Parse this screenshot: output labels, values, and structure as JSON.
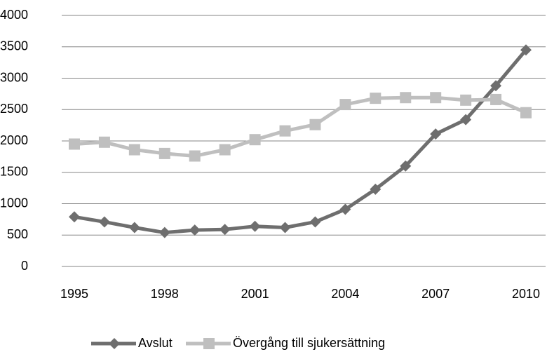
{
  "chart_data": {
    "type": "line",
    "x": [
      1995,
      1996,
      1997,
      1998,
      1999,
      2000,
      2001,
      2002,
      2003,
      2004,
      2005,
      2006,
      2007,
      2008,
      2009,
      2010
    ],
    "series": [
      {
        "name": "Avslut",
        "color": "#6e6e6e",
        "marker": "diamond",
        "values": [
          790,
          710,
          620,
          540,
          580,
          590,
          640,
          620,
          710,
          910,
          1230,
          1600,
          2110,
          2340,
          2880,
          3450
        ]
      },
      {
        "name": "Övergång till sjukersättning",
        "color": "#bfbfbf",
        "marker": "square",
        "values": [
          1950,
          1980,
          1860,
          1800,
          1760,
          1860,
          2020,
          2160,
          2260,
          2580,
          2680,
          2690,
          2690,
          2650,
          2660,
          2450
        ]
      }
    ],
    "xlim": [
      1995,
      2010
    ],
    "xticks": [
      1995,
      1998,
      2001,
      2004,
      2007,
      2010
    ],
    "ylim": [
      0,
      4000
    ],
    "yticks": [
      0,
      500,
      1000,
      1500,
      2000,
      2500,
      3000,
      3500,
      4000
    ],
    "grid": true,
    "legend": "bottom"
  }
}
